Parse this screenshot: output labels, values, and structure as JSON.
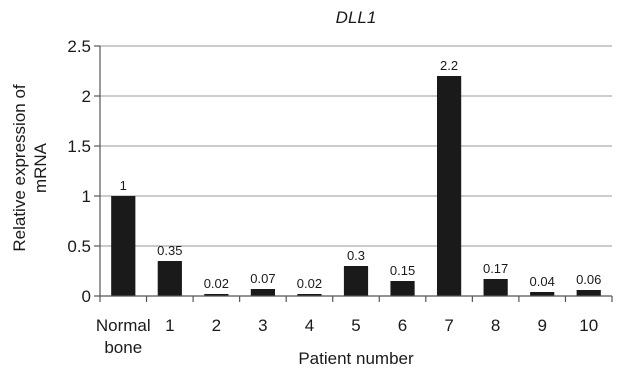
{
  "chart_data": {
    "type": "bar",
    "title": "DLL1",
    "xlabel": "Patient number",
    "ylabel": [
      "Relative expression of",
      "mRNA"
    ],
    "categories": [
      [
        "Normal",
        "bone"
      ],
      [
        "1"
      ],
      [
        "2"
      ],
      [
        "3"
      ],
      [
        "4"
      ],
      [
        "5"
      ],
      [
        "6"
      ],
      [
        "7"
      ],
      [
        "8"
      ],
      [
        "9"
      ],
      [
        "10"
      ]
    ],
    "values": [
      1,
      0.35,
      0.02,
      0.07,
      0.02,
      0.3,
      0.15,
      2.2,
      0.17,
      0.04,
      0.06
    ],
    "data_labels": [
      "1",
      "0.35",
      "0.02",
      "0.07",
      "0.02",
      "0.3",
      "0.15",
      "2.2",
      "0.17",
      "0.04",
      "0.06"
    ],
    "ylim": [
      0,
      2.5
    ],
    "yticks": [
      0,
      0.5,
      1,
      1.5,
      2,
      2.5
    ],
    "ytick_labels": [
      "0",
      "0.5",
      "1",
      "1.5",
      "2",
      "2.5"
    ],
    "grid": true,
    "bar_color": "#1a1a1a"
  }
}
